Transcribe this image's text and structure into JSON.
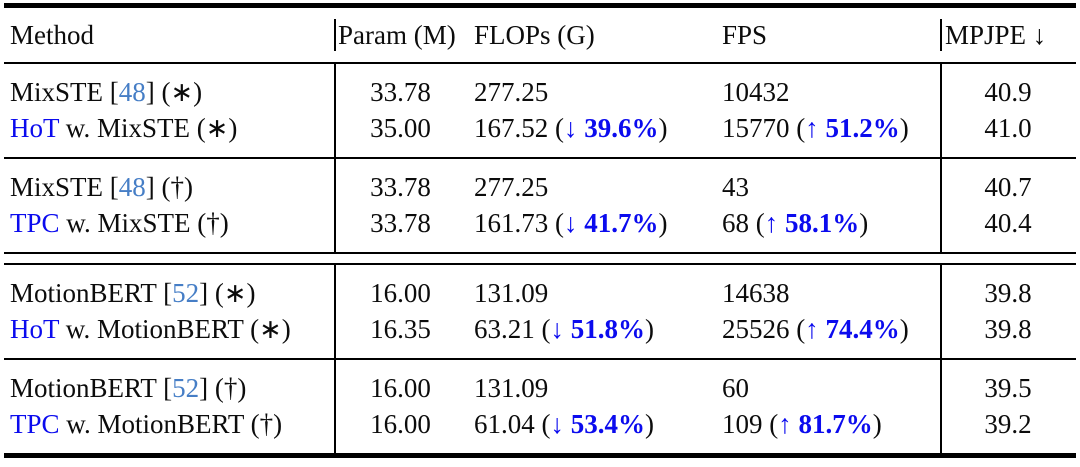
{
  "colors": {
    "highlight_blue": "#0b0bee",
    "citation_blue": "#467ec6",
    "text_black": "#0c0c0c"
  },
  "header": {
    "method": "Method",
    "param": "Param (M)",
    "flops": "FLOPs (G)",
    "fps": "FPS",
    "mpjpe": "MPJPE ↓"
  },
  "rows": [
    {
      "method": [
        {
          "t": "MixSTE ["
        },
        {
          "t": "48",
          "c": "cite"
        },
        {
          "t": "] (∗)"
        }
      ],
      "param": "33.78",
      "flops": [
        {
          "t": "277.25"
        }
      ],
      "fps": [
        {
          "t": "10432"
        }
      ],
      "mpjpe": "40.9"
    },
    {
      "method": [
        {
          "t": "HoT",
          "c": "hl"
        },
        {
          "t": " w. MixSTE (∗)"
        }
      ],
      "param": "35.00",
      "flops": [
        {
          "t": "167.52 ("
        },
        {
          "t": "↓ ",
          "c": "arr"
        },
        {
          "t": "39.6%",
          "c": "pct"
        },
        {
          "t": ")"
        }
      ],
      "fps": [
        {
          "t": "15770 ("
        },
        {
          "t": "↑ ",
          "c": "arr"
        },
        {
          "t": "51.2%",
          "c": "pct"
        },
        {
          "t": ")"
        }
      ],
      "mpjpe": "41.0"
    },
    {
      "method": [
        {
          "t": "MixSTE ["
        },
        {
          "t": "48",
          "c": "cite"
        },
        {
          "t": "] (†)"
        }
      ],
      "param": "33.78",
      "flops": [
        {
          "t": "277.25"
        }
      ],
      "fps": [
        {
          "t": "43"
        }
      ],
      "mpjpe": "40.7"
    },
    {
      "method": [
        {
          "t": "TPC",
          "c": "hl"
        },
        {
          "t": " w. MixSTE (†)"
        }
      ],
      "param": "33.78",
      "flops": [
        {
          "t": "161.73 ("
        },
        {
          "t": "↓ ",
          "c": "arr"
        },
        {
          "t": "41.7%",
          "c": "pct"
        },
        {
          "t": ")"
        }
      ],
      "fps": [
        {
          "t": "68 ("
        },
        {
          "t": "↑ ",
          "c": "arr"
        },
        {
          "t": "58.1%",
          "c": "pct"
        },
        {
          "t": ")"
        }
      ],
      "mpjpe": "40.4"
    },
    {
      "method": [
        {
          "t": "MotionBERT ["
        },
        {
          "t": "52",
          "c": "cite"
        },
        {
          "t": "] (∗)"
        }
      ],
      "param": "16.00",
      "flops": [
        {
          "t": "131.09"
        }
      ],
      "fps": [
        {
          "t": "14638"
        }
      ],
      "mpjpe": "39.8"
    },
    {
      "method": [
        {
          "t": "HoT",
          "c": "hl"
        },
        {
          "t": " w. MotionBERT (∗)"
        }
      ],
      "param": "16.35",
      "flops": [
        {
          "t": "63.21 ("
        },
        {
          "t": "↓ ",
          "c": "arr"
        },
        {
          "t": "51.8%",
          "c": "pct"
        },
        {
          "t": ")"
        }
      ],
      "fps": [
        {
          "t": "25526 ("
        },
        {
          "t": "↑ ",
          "c": "arr"
        },
        {
          "t": "74.4%",
          "c": "pct"
        },
        {
          "t": ")"
        }
      ],
      "mpjpe": "39.8"
    },
    {
      "method": [
        {
          "t": "MotionBERT ["
        },
        {
          "t": "52",
          "c": "cite"
        },
        {
          "t": "] (†)"
        }
      ],
      "param": "16.00",
      "flops": [
        {
          "t": "131.09"
        }
      ],
      "fps": [
        {
          "t": "60"
        }
      ],
      "mpjpe": "39.5"
    },
    {
      "method": [
        {
          "t": "TPC",
          "c": "hl"
        },
        {
          "t": " w. MotionBERT (†)"
        }
      ],
      "param": "16.00",
      "flops": [
        {
          "t": "61.04 ("
        },
        {
          "t": "↓ ",
          "c": "arr"
        },
        {
          "t": "53.4%",
          "c": "pct"
        },
        {
          "t": ")"
        }
      ],
      "fps": [
        {
          "t": "109 ("
        },
        {
          "t": "↑ ",
          "c": "arr"
        },
        {
          "t": "81.7%",
          "c": "pct"
        },
        {
          "t": ")"
        }
      ],
      "mpjpe": "39.2"
    }
  ]
}
